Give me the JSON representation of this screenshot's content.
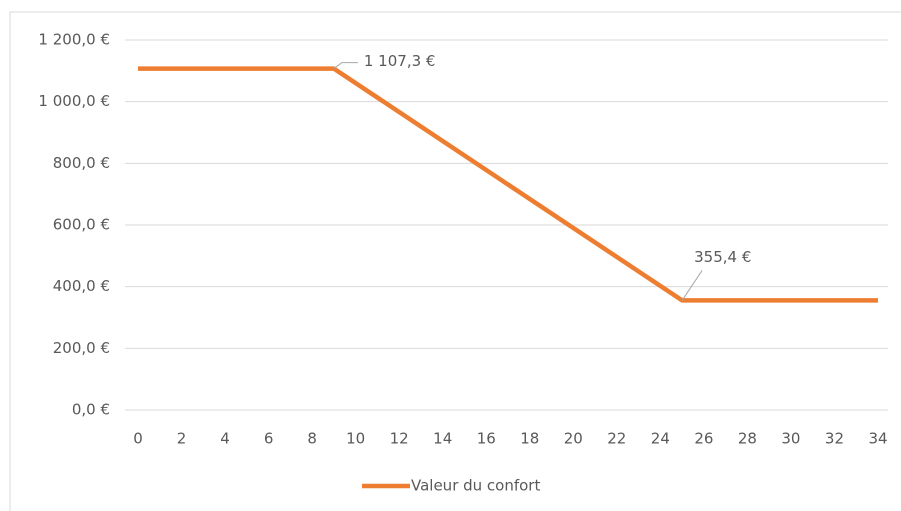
{
  "chart_data": {
    "type": "line",
    "x": [
      0,
      9,
      25,
      34
    ],
    "series": [
      {
        "name": "Valeur du confort",
        "color": "#ed7d31",
        "values": [
          1107.3,
          1107.3,
          355.4,
          355.4
        ],
        "value_labels": [
          null,
          "1 107,3 €",
          "355,4 €",
          null
        ]
      }
    ],
    "xlim": [
      0,
      34
    ],
    "xticks": [
      0,
      2,
      4,
      6,
      8,
      10,
      12,
      14,
      16,
      18,
      20,
      22,
      24,
      26,
      28,
      30,
      32,
      34
    ],
    "ylim": [
      0,
      1200
    ],
    "yticks": [
      {
        "value": 0,
        "label": "0,0 €"
      },
      {
        "value": 200,
        "label": "200,0 €"
      },
      {
        "value": 400,
        "label": "400,0 €"
      },
      {
        "value": 600,
        "label": "600,0 €"
      },
      {
        "value": 800,
        "label": "800,0 €"
      },
      {
        "value": 1000,
        "label": "1 000,0 €"
      },
      {
        "value": 1200,
        "label": "1 200,0 €"
      }
    ],
    "grid": true,
    "legend": "bottom"
  }
}
